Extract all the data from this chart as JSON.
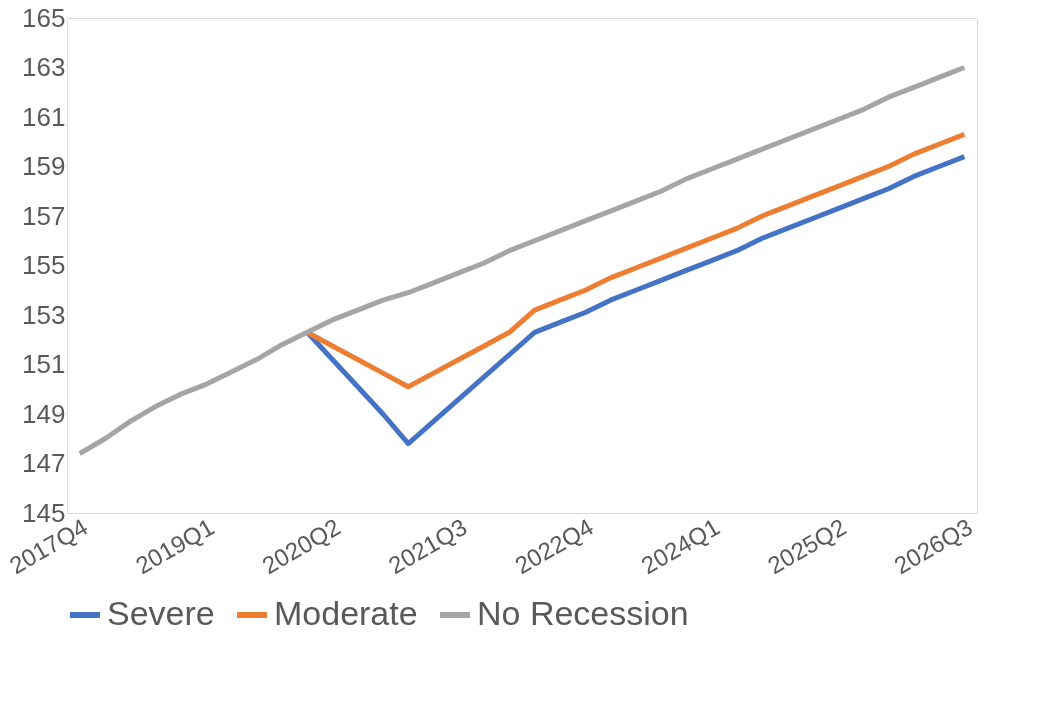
{
  "chart_data": {
    "type": "line",
    "categories": [
      "2017Q4",
      null,
      null,
      null,
      null,
      "2019Q1",
      null,
      null,
      null,
      null,
      "2020Q2",
      null,
      null,
      null,
      null,
      "2021Q3",
      null,
      null,
      null,
      null,
      "2022Q4",
      null,
      null,
      null,
      null,
      "2024Q1",
      null,
      null,
      null,
      null,
      "2025Q2",
      null,
      null,
      null,
      null,
      "2026Q3"
    ],
    "series": [
      {
        "name": "Severe",
        "color": "#4472c4",
        "values": [
          null,
          null,
          null,
          null,
          null,
          null,
          null,
          null,
          null,
          152.3,
          151.2,
          150.1,
          149.0,
          147.8,
          148.7,
          149.6,
          150.5,
          151.4,
          152.3,
          152.7,
          153.1,
          153.6,
          154.0,
          154.4,
          154.8,
          155.2,
          155.6,
          156.1,
          156.5,
          156.9,
          157.3,
          157.7,
          158.1,
          158.6,
          159.0,
          159.4
        ]
      },
      {
        "name": "Moderate",
        "color": "#ed7d31",
        "values": [
          null,
          null,
          null,
          null,
          null,
          null,
          null,
          null,
          null,
          152.3,
          151.75,
          151.2,
          150.65,
          150.1,
          150.65,
          151.2,
          151.75,
          152.3,
          153.2,
          153.6,
          154.0,
          154.5,
          154.9,
          155.3,
          155.7,
          156.1,
          156.5,
          157.0,
          157.4,
          157.8,
          158.2,
          158.6,
          159.0,
          159.5,
          159.9,
          160.3
        ]
      },
      {
        "name": "No Recession",
        "color": "#a5a5a5",
        "values": [
          147.4,
          148.0,
          148.7,
          149.3,
          149.8,
          150.2,
          150.7,
          151.2,
          151.8,
          152.3,
          152.8,
          153.2,
          153.6,
          153.9,
          154.3,
          154.7,
          155.1,
          155.6,
          156.0,
          156.4,
          156.8,
          157.2,
          157.6,
          158.0,
          158.5,
          158.9,
          159.3,
          159.7,
          160.1,
          160.5,
          160.9,
          161.3,
          161.8,
          162.2,
          162.6,
          163.0
        ]
      }
    ],
    "ylim": [
      145,
      165
    ],
    "yticks": [
      145,
      147,
      149,
      151,
      153,
      155,
      157,
      159,
      161,
      163,
      165
    ],
    "grid": false,
    "legend": "bottom",
    "marker": "none",
    "line_style": "solid"
  }
}
